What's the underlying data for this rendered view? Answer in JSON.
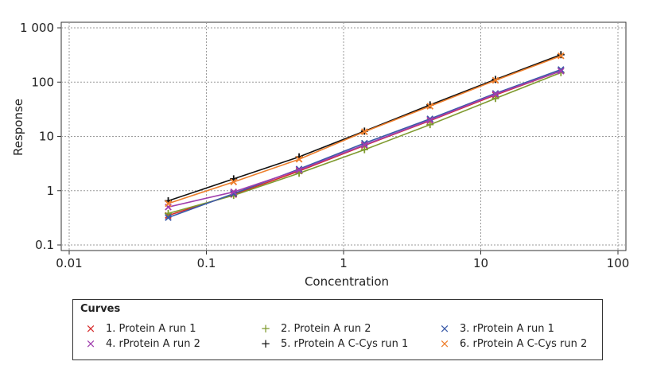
{
  "chart_data": {
    "type": "line",
    "xlabel": "Concentration",
    "ylabel": "Response",
    "xscale": "log",
    "yscale": "log",
    "xlim": [
      0.01,
      100
    ],
    "ylim": [
      0.1,
      1000
    ],
    "grid": true,
    "x_ticks": [
      "0.01",
      "0.1",
      "1",
      "10",
      "100"
    ],
    "y_ticks": [
      "0.1",
      "1",
      "10",
      "100",
      "1 000"
    ],
    "legend_title": "Curves",
    "legend_position": "bottom",
    "x": [
      0.0527,
      0.158,
      0.474,
      1.42,
      4.27,
      12.8,
      38.4
    ],
    "series": [
      {
        "name": "1. Protein A run 1",
        "marker": "x",
        "color": "#d62b2b",
        "values": [
          0.35,
          0.85,
          2.3,
          6.8,
          19.5,
          58,
          160
        ]
      },
      {
        "name": "2. Protein A run 2",
        "marker": "+",
        "color": "#7f9a2e",
        "values": [
          0.38,
          0.82,
          2.1,
          5.7,
          16.5,
          50,
          150
        ]
      },
      {
        "name": "3. rProtein A run 1",
        "marker": "x",
        "color": "#3a5aa8",
        "values": [
          0.32,
          0.88,
          2.5,
          7.5,
          21,
          62,
          170
        ]
      },
      {
        "name": "4. rProtein A run 2",
        "marker": "x",
        "color": "#a03fae",
        "values": [
          0.5,
          0.95,
          2.4,
          7,
          20,
          60,
          160
        ]
      },
      {
        "name": "5. rProtein A C-Cys run 1",
        "marker": "+",
        "color": "#111111",
        "values": [
          0.65,
          1.65,
          4.2,
          12.5,
          38,
          112,
          320
        ]
      },
      {
        "name": "6. rProtein A C-Cys run 2",
        "marker": "x",
        "color": "#ee7f2d",
        "values": [
          0.58,
          1.45,
          3.8,
          12.2,
          36,
          108,
          305
        ]
      }
    ]
  }
}
